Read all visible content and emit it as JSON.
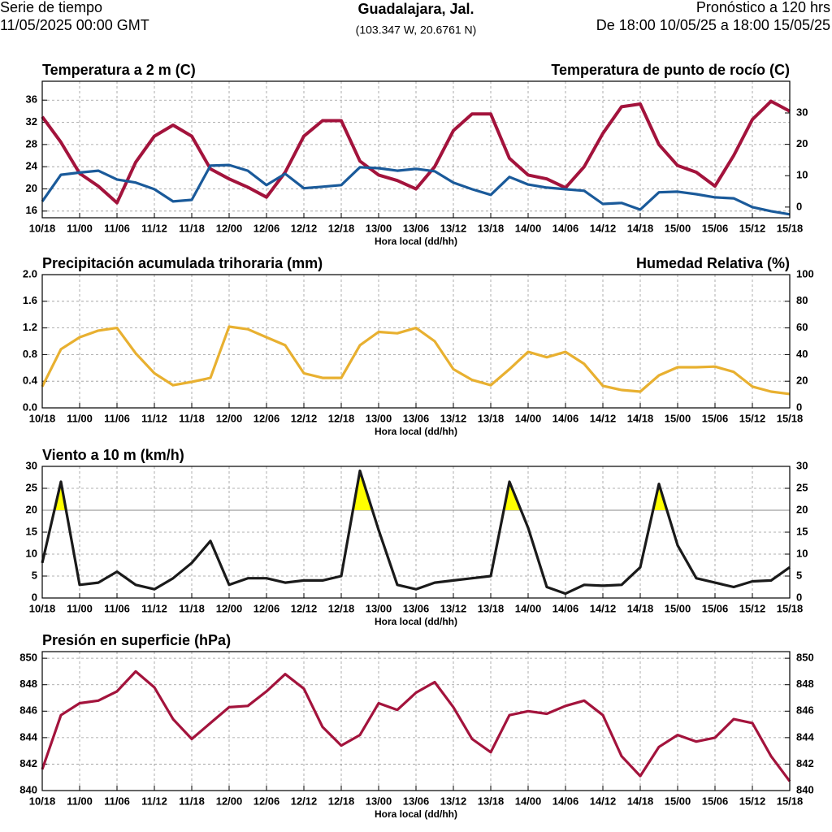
{
  "header": {
    "left1": "Serie de tiempo",
    "left2": "11/05/2025 00:00 GMT",
    "title": "Guadalajara, Jal.",
    "subtitle": "(103.347 W, 20.6761 N)",
    "right1": "Pronóstico a 120 hrs",
    "right2": "De 18:00 10/05/25 a 18:00 15/05/25"
  },
  "chart_data": [
    {
      "type": "line",
      "xlabel": "Hora local (dd/hh)",
      "grid": true,
      "y_color": "#a3133c",
      "y2_color": "#1a5a9a",
      "x": [
        "10/18",
        "10/21",
        "11/00",
        "11/03",
        "11/06",
        "11/09",
        "11/12",
        "11/15",
        "11/18",
        "11/21",
        "12/00",
        "12/03",
        "12/06",
        "12/09",
        "12/12",
        "12/15",
        "12/18",
        "12/21",
        "13/00",
        "13/03",
        "13/06",
        "13/09",
        "13/12",
        "13/15",
        "13/18",
        "13/21",
        "14/00",
        "14/03",
        "14/06",
        "14/09",
        "14/12",
        "14/15",
        "14/18",
        "14/21",
        "15/00",
        "15/03",
        "15/06",
        "15/09",
        "15/12",
        "15/15",
        "15/18"
      ],
      "xticks": [
        "10/18",
        "11/00",
        "11/06",
        "11/12",
        "11/18",
        "12/00",
        "12/06",
        "12/12",
        "12/18",
        "13/00",
        "13/06",
        "13/12",
        "13/18",
        "14/00",
        "14/06",
        "14/12",
        "14/18",
        "15/00",
        "15/06",
        "15/12",
        "15/18"
      ],
      "ylim": [
        14.8,
        39.4
      ],
      "yticks": [
        16,
        20,
        24,
        28,
        32,
        36
      ],
      "y2lim": [
        -3.4,
        40.1
      ],
      "y2ticks": [
        0,
        10,
        20,
        30
      ],
      "series": [
        {
          "name": "Temperatura a 2 m (C)",
          "color": "#a3133c",
          "axis": "y",
          "values": [
            33,
            28.4,
            22.8,
            20.5,
            17.5,
            24.8,
            29.5,
            31.5,
            29.5,
            23.6,
            21.8,
            20.3,
            18.5,
            23,
            29.5,
            32.3,
            32.3,
            25,
            22.5,
            21.5,
            20,
            24,
            30.5,
            33.5,
            33.5,
            25.5,
            22.5,
            21.8,
            20.2,
            24,
            30,
            34.8,
            35.3,
            28,
            24.2,
            23,
            20.5,
            26,
            32.5,
            35.8,
            34
          ]
        },
        {
          "name": "Temperatura de punto de rocío (C)",
          "color": "#1a5a9a",
          "axis": "y2",
          "values": [
            1.8,
            10.3,
            11,
            11.6,
            8.8,
            7.8,
            5.7,
            1.8,
            2.3,
            13.2,
            13.4,
            11.6,
            7,
            10.6,
            6,
            6.5,
            7,
            12.7,
            12.4,
            11.6,
            12.2,
            11.4,
            7.8,
            5.7,
            3.9,
            9.6,
            7.2,
            6.2,
            5.7,
            5.2,
            1,
            1.3,
            -0.8,
            4.7,
            4.9,
            4.1,
            3.1,
            2.8,
            0,
            -1.3,
            -2.3
          ]
        }
      ]
    },
    {
      "type": "line",
      "xlabel": "Hora local (dd/hh)",
      "grid": true,
      "y_color": "#4b9a1f",
      "y2_color": "#e8b030",
      "ylabel": "Precipitación acumulada trihoraria (mm)",
      "x": [
        "10/18",
        "10/21",
        "11/00",
        "11/03",
        "11/06",
        "11/09",
        "11/12",
        "11/15",
        "11/18",
        "11/21",
        "12/00",
        "12/03",
        "12/06",
        "12/09",
        "12/12",
        "12/15",
        "12/18",
        "12/21",
        "13/00",
        "13/03",
        "13/06",
        "13/09",
        "13/12",
        "13/15",
        "13/18",
        "13/21",
        "14/00",
        "14/03",
        "14/06",
        "14/09",
        "14/12",
        "14/15",
        "14/18",
        "14/21",
        "15/00",
        "15/03",
        "15/06",
        "15/09",
        "15/12",
        "15/15",
        "15/18"
      ],
      "xticks": [
        "10/18",
        "11/00",
        "11/06",
        "11/12",
        "11/18",
        "12/00",
        "12/06",
        "12/12",
        "12/18",
        "13/00",
        "13/06",
        "13/12",
        "13/18",
        "14/00",
        "14/06",
        "14/12",
        "14/18",
        "15/00",
        "15/06",
        "15/12",
        "15/18"
      ],
      "ylim": [
        0,
        2
      ],
      "yticks": [
        {
          "value": 0,
          "label": "0.0"
        },
        0.4,
        0.8,
        1.2,
        1.6,
        {
          "value": 2,
          "label": "2.0"
        }
      ],
      "y2lim": [
        0,
        100
      ],
      "y2ticks": [
        0,
        20,
        40,
        60,
        80,
        100
      ],
      "series": [
        {
          "name": "Humedad Relativa (%)",
          "color": "#e8b030",
          "axis": "y2",
          "values": [
            16,
            44,
            53,
            58,
            60,
            41,
            26,
            17,
            19.5,
            22.5,
            61,
            59,
            53,
            47,
            26,
            22.5,
            22.5,
            47,
            57,
            56,
            60,
            50,
            29,
            21,
            17,
            29,
            42,
            38,
            42,
            33,
            16.5,
            13.4,
            12.2,
            24.4,
            30.5,
            30.5,
            31,
            27,
            16,
            12.2,
            10.4
          ]
        }
      ]
    },
    {
      "type": "line",
      "xlabel": "Hora local (dd/hh)",
      "grid": true,
      "y_color": "#000000",
      "y2_color": "#000000",
      "threshold": 20,
      "fill_color": "#ffff00",
      "x": [
        "10/18",
        "10/21",
        "11/00",
        "11/03",
        "11/06",
        "11/09",
        "11/12",
        "11/15",
        "11/18",
        "11/21",
        "12/00",
        "12/03",
        "12/06",
        "12/09",
        "12/12",
        "12/15",
        "12/18",
        "12/21",
        "13/00",
        "13/03",
        "13/06",
        "13/09",
        "13/12",
        "13/15",
        "13/18",
        "13/21",
        "14/00",
        "14/03",
        "14/06",
        "14/09",
        "14/12",
        "14/15",
        "14/18",
        "14/21",
        "15/00",
        "15/03",
        "15/06",
        "15/09",
        "15/12",
        "15/15",
        "15/18"
      ],
      "xticks": [
        "10/18",
        "11/00",
        "11/06",
        "11/12",
        "11/18",
        "12/00",
        "12/06",
        "12/12",
        "12/18",
        "13/00",
        "13/06",
        "13/12",
        "13/18",
        "14/00",
        "14/06",
        "14/12",
        "14/18",
        "15/00",
        "15/06",
        "15/12",
        "15/18"
      ],
      "ylim": [
        0,
        30
      ],
      "yticks": [
        0,
        5,
        10,
        15,
        20,
        25,
        30
      ],
      "y2lim": [
        0,
        30
      ],
      "y2ticks": [
        0,
        5,
        10,
        15,
        20,
        25,
        30
      ],
      "series": [
        {
          "name": "Viento a 10 m (km/h)",
          "color": "#1a1a1a",
          "axis": "y",
          "values": [
            8,
            26.5,
            3,
            3.5,
            6,
            3,
            2,
            4.5,
            8,
            13,
            3,
            4.5,
            4.5,
            3.5,
            4,
            4,
            5,
            29,
            15.5,
            3,
            2,
            3.5,
            4,
            4.5,
            5,
            26.5,
            16,
            2.5,
            1,
            3,
            2.8,
            3,
            7,
            26,
            12,
            4.5,
            3.5,
            2.5,
            3.8,
            4,
            7
          ]
        }
      ]
    },
    {
      "type": "line",
      "xlabel": "Hora local (dd/hh)",
      "grid": true,
      "y_color": "#a3133c",
      "y2_color": "#a3133c",
      "x": [
        "10/18",
        "10/21",
        "11/00",
        "11/03",
        "11/06",
        "11/09",
        "11/12",
        "11/15",
        "11/18",
        "11/21",
        "12/00",
        "12/03",
        "12/06",
        "12/09",
        "12/12",
        "12/15",
        "12/18",
        "12/21",
        "13/00",
        "13/03",
        "13/06",
        "13/09",
        "13/12",
        "13/15",
        "13/18",
        "13/21",
        "14/00",
        "14/03",
        "14/06",
        "14/09",
        "14/12",
        "14/15",
        "14/18",
        "14/21",
        "15/00",
        "15/03",
        "15/06",
        "15/09",
        "15/12",
        "15/15",
        "15/18"
      ],
      "xticks": [
        "10/18",
        "11/00",
        "11/06",
        "11/12",
        "11/18",
        "12/00",
        "12/06",
        "12/12",
        "12/18",
        "13/00",
        "13/06",
        "13/12",
        "13/18",
        "14/00",
        "14/06",
        "14/12",
        "14/18",
        "15/00",
        "15/06",
        "15/12",
        "15/18"
      ],
      "ylim": [
        840,
        850.5
      ],
      "yticks": [
        840,
        842,
        844,
        846,
        848,
        850
      ],
      "y2lim": [
        840,
        850.5
      ],
      "y2ticks": [
        840,
        842,
        844,
        846,
        848,
        850
      ],
      "series": [
        {
          "name": "Presión en superficie (hPa)",
          "color": "#a3133c",
          "axis": "y",
          "values": [
            841.6,
            845.7,
            846.6,
            846.8,
            847.5,
            849,
            847.8,
            845.4,
            843.9,
            845.1,
            846.3,
            846.4,
            847.5,
            848.8,
            847.7,
            844.8,
            843.4,
            844.2,
            846.6,
            846.1,
            847.4,
            848.2,
            846.3,
            843.9,
            842.9,
            845.7,
            846,
            845.8,
            846.4,
            846.8,
            845.7,
            842.6,
            841.1,
            843.3,
            844.2,
            843.7,
            844,
            845.4,
            845.1,
            842.6,
            840.7
          ]
        }
      ]
    }
  ]
}
